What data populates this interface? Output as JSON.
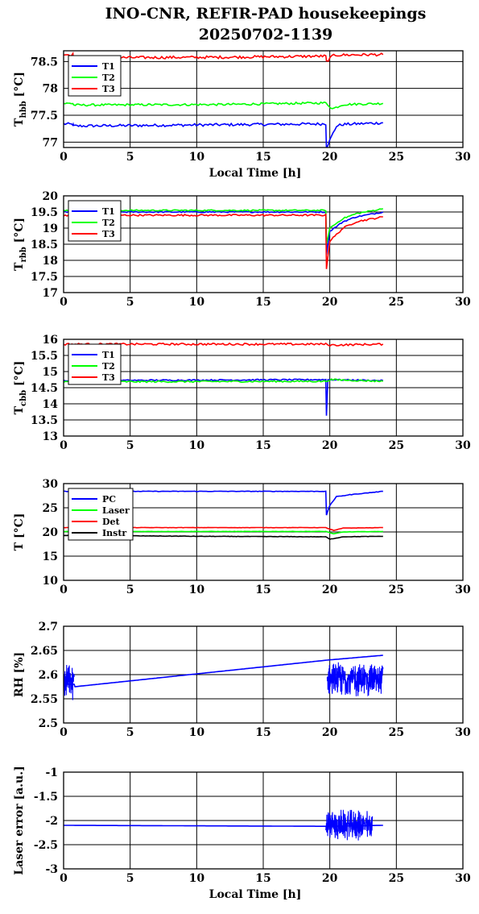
{
  "title_line1": "INO-CNR, REFIR-PAD housekeepings",
  "title_line2": "20250702-1139",
  "chart_data": [
    {
      "type": "line",
      "id": "thbb",
      "ylabel": "T",
      "ylabel_sub": "hbb",
      "ylabel_unit": "[°C]",
      "xlabel": "Local Time [h]",
      "xlim": [
        0,
        30
      ],
      "ylim": [
        76.9,
        78.7
      ],
      "xticks": [
        0,
        5,
        10,
        15,
        20,
        25,
        30
      ],
      "yticks": [
        77,
        77.5,
        78,
        78.5
      ],
      "grid": true,
      "legend_position": "top-left",
      "series": [
        {
          "name": "T1",
          "color": "#0000ff",
          "points": [
            [
              0,
              77.34
            ],
            [
              0.7,
              77.33
            ],
            [
              0.75,
              77.3
            ],
            [
              19.7,
              77.34
            ],
            [
              19.75,
              76.9
            ],
            [
              20.5,
              77.3
            ],
            [
              21,
              77.33
            ],
            [
              24,
              77.36
            ]
          ],
          "noise": 0.025
        },
        {
          "name": "T2",
          "color": "#00ff00",
          "points": [
            [
              0,
              77.72
            ],
            [
              0.7,
              77.72
            ],
            [
              0.75,
              77.69
            ],
            [
              12,
              77.7
            ],
            [
              19.7,
              77.73
            ],
            [
              20.2,
              77.62
            ],
            [
              21,
              77.7
            ],
            [
              24,
              77.72
            ]
          ],
          "noise": 0.02
        },
        {
          "name": "T3",
          "color": "#ff0000",
          "points": [
            [
              0,
              78.63
            ],
            [
              0.7,
              78.63
            ],
            [
              0.75,
              78.57
            ],
            [
              12,
              78.58
            ],
            [
              19.7,
              78.6
            ],
            [
              19.75,
              78.5
            ],
            [
              20.3,
              78.62
            ],
            [
              24,
              78.63
            ]
          ],
          "noise": 0.025
        }
      ]
    },
    {
      "type": "line",
      "id": "trbb",
      "ylabel": "T",
      "ylabel_sub": "rbb",
      "ylabel_unit": "[°C]",
      "xlabel": "",
      "xlim": [
        0,
        30
      ],
      "ylim": [
        17,
        20
      ],
      "xticks": [
        0,
        5,
        10,
        15,
        20,
        25,
        30
      ],
      "yticks": [
        17,
        17.5,
        18,
        18.5,
        19,
        19.5,
        20
      ],
      "grid": true,
      "legend_position": "top-left",
      "series": [
        {
          "name": "T1",
          "color": "#0000ff",
          "points": [
            [
              0,
              19.5
            ],
            [
              19.7,
              19.5
            ],
            [
              19.75,
              18.2
            ],
            [
              20,
              18.9
            ],
            [
              21,
              19.2
            ],
            [
              22,
              19.35
            ],
            [
              24,
              19.5
            ]
          ],
          "noise": 0.02
        },
        {
          "name": "T2",
          "color": "#00ff00",
          "points": [
            [
              0,
              19.55
            ],
            [
              19.7,
              19.55
            ],
            [
              19.75,
              18.5
            ],
            [
              20,
              19.0
            ],
            [
              21,
              19.3
            ],
            [
              22,
              19.45
            ],
            [
              24,
              19.6
            ]
          ],
          "noise": 0.02
        },
        {
          "name": "T3",
          "color": "#ff0000",
          "points": [
            [
              0,
              19.4
            ],
            [
              19.7,
              19.4
            ],
            [
              19.75,
              17.75
            ],
            [
              20,
              18.6
            ],
            [
              21,
              19.0
            ],
            [
              22,
              19.2
            ],
            [
              24,
              19.35
            ]
          ],
          "noise": 0.025
        }
      ]
    },
    {
      "type": "line",
      "id": "tcbb",
      "ylabel": "T",
      "ylabel_sub": "cbb",
      "ylabel_unit": "[°C]",
      "xlabel": "",
      "xlim": [
        0,
        30
      ],
      "ylim": [
        13,
        16
      ],
      "xticks": [
        0,
        5,
        10,
        15,
        20,
        25,
        30
      ],
      "yticks": [
        13,
        13.5,
        14,
        14.5,
        15,
        15.5,
        16
      ],
      "grid": true,
      "legend_position": "top-left",
      "series": [
        {
          "name": "T1",
          "color": "#0000ff",
          "points": [
            [
              0,
              14.72
            ],
            [
              19.7,
              14.75
            ],
            [
              19.75,
              13.65
            ],
            [
              19.85,
              14.75
            ],
            [
              24,
              14.72
            ]
          ],
          "noise": 0.02
        },
        {
          "name": "T2",
          "color": "#00ff00",
          "points": [
            [
              0,
              14.68
            ],
            [
              19.7,
              14.7
            ],
            [
              20,
              14.75
            ],
            [
              24,
              14.7
            ]
          ],
          "noise": 0.025
        },
        {
          "name": "T3",
          "color": "#ff0000",
          "points": [
            [
              0,
              15.85
            ],
            [
              19.7,
              15.85
            ],
            [
              20,
              15.82
            ],
            [
              24,
              15.85
            ]
          ],
          "noise": 0.03
        }
      ]
    },
    {
      "type": "line",
      "id": "temps",
      "ylabel": "T [°C]",
      "xlabel": "",
      "xlim": [
        0,
        30
      ],
      "ylim": [
        10,
        30
      ],
      "xticks": [
        0,
        5,
        10,
        15,
        20,
        25,
        30
      ],
      "yticks": [
        10,
        15,
        20,
        25,
        30
      ],
      "grid": true,
      "legend_position": "top-left",
      "series": [
        {
          "name": "PC",
          "color": "#0000ff",
          "points": [
            [
              0,
              28.4
            ],
            [
              19.7,
              28.4
            ],
            [
              19.75,
              23.5
            ],
            [
              20,
              25.5
            ],
            [
              20.5,
              27.3
            ],
            [
              21.5,
              27.7
            ],
            [
              24,
              28.4
            ]
          ],
          "noise": 0.05
        },
        {
          "name": "Laser",
          "color": "#00ff00",
          "points": [
            [
              0,
              20.1
            ],
            [
              19.7,
              20.1
            ],
            [
              20.3,
              19.6
            ],
            [
              21,
              20.0
            ],
            [
              24,
              20.1
            ]
          ],
          "noise": 0.03
        },
        {
          "name": "Det",
          "color": "#ff0000",
          "points": [
            [
              0,
              20.9
            ],
            [
              19.7,
              20.9
            ],
            [
              20.3,
              20.3
            ],
            [
              21,
              20.8
            ],
            [
              24,
              20.9
            ]
          ],
          "noise": 0.03
        },
        {
          "name": "Instr",
          "color": "#000000",
          "points": [
            [
              0,
              19.3
            ],
            [
              10,
              19.1
            ],
            [
              19.7,
              19.0
            ],
            [
              20,
              18.5
            ],
            [
              21,
              19.0
            ],
            [
              24,
              19.1
            ]
          ],
          "noise": 0.04
        }
      ]
    },
    {
      "type": "line",
      "id": "rh",
      "ylabel": "RH [%]",
      "xlabel": "",
      "xlim": [
        0,
        30
      ],
      "ylim": [
        2.5,
        2.7
      ],
      "xticks": [
        0,
        5,
        10,
        15,
        20,
        25,
        30
      ],
      "yticks": [
        2.5,
        2.55,
        2.6,
        2.65,
        2.7
      ],
      "grid": true,
      "legend_position": "none",
      "series": [
        {
          "name": "",
          "color": "#0000ff",
          "points": [
            [
              0,
              2.58
            ],
            [
              0.8,
              2.58
            ],
            [
              0.85,
              2.575
            ],
            [
              19.8,
              2.63
            ],
            [
              24,
              2.64
            ]
          ],
          "noise": 0.0,
          "bursts": [
            [
              0,
              0.8,
              2.585,
              0.04
            ],
            [
              19.8,
              24,
              2.59,
              0.04
            ]
          ]
        }
      ]
    },
    {
      "type": "line",
      "id": "laser",
      "ylabel": "Laser error [a.u.]",
      "xlabel": "Local Time [h]",
      "xlim": [
        0,
        30
      ],
      "ylim": [
        -3,
        -1
      ],
      "xticks": [
        0,
        5,
        10,
        15,
        20,
        25,
        30
      ],
      "yticks": [
        -3,
        -2.5,
        -2,
        -1.5,
        -1
      ],
      "grid": true,
      "legend_position": "none",
      "series": [
        {
          "name": "",
          "color": "#0000ff",
          "points": [
            [
              0,
              -2.1
            ],
            [
              19.7,
              -2.12
            ],
            [
              24,
              -2.1
            ]
          ],
          "noise": 0.0,
          "bursts": [
            [
              19.7,
              23.2,
              -2.1,
              0.35
            ]
          ]
        }
      ]
    }
  ]
}
